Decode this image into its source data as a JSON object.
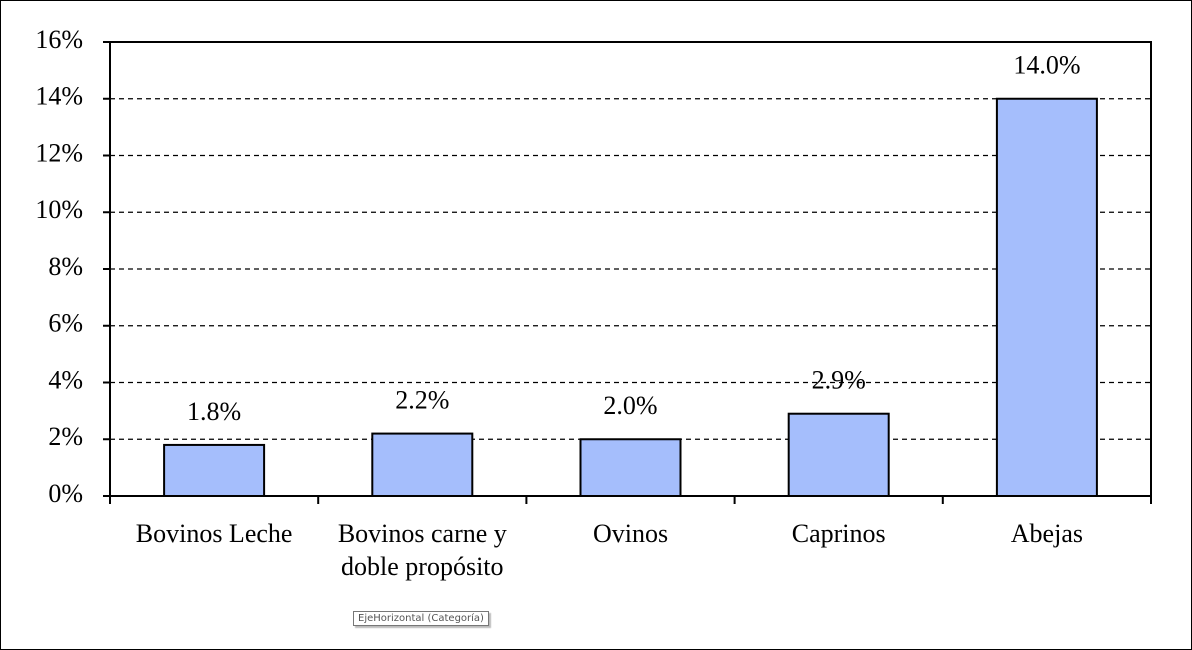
{
  "chart_data": {
    "type": "bar",
    "categories": [
      "Bovinos Leche",
      "Bovinos carne y doble propósito",
      "Ovinos",
      "Caprinos",
      "Abejas"
    ],
    "values": [
      1.8,
      2.2,
      2.0,
      2.9,
      14.0
    ],
    "value_labels": [
      "1.8%",
      "2.2%",
      "2.0%",
      "2.9%",
      "14.0%"
    ],
    "color": "#a5befc",
    "ylim": [
      0,
      16
    ],
    "yticks": [
      {
        "value": 0,
        "label": "0%"
      },
      {
        "value": 2,
        "label": "2%"
      },
      {
        "value": 4,
        "label": "4%"
      },
      {
        "value": 6,
        "label": "6%"
      },
      {
        "value": 8,
        "label": "8%"
      },
      {
        "value": 10,
        "label": "10%"
      },
      {
        "value": 12,
        "label": "12%"
      },
      {
        "value": 14,
        "label": "14%"
      },
      {
        "value": 16,
        "label": "16%"
      }
    ],
    "grid": true
  },
  "tooltip": "EjeHorizontal (Categoría)"
}
